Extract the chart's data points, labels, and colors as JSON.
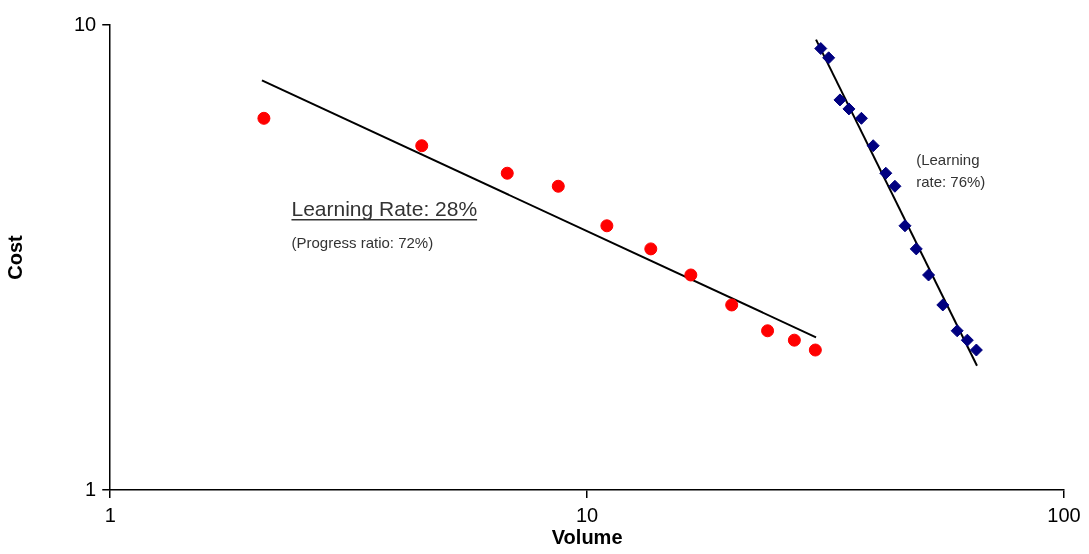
{
  "chart_data": {
    "type": "scatter",
    "xlabel": "Volume",
    "ylabel": "Cost",
    "log": "xy",
    "xlim": [
      1,
      100
    ],
    "ylim": [
      1,
      10
    ],
    "xticks": [
      1,
      10,
      100
    ],
    "yticks": [
      1,
      10
    ],
    "grid": false,
    "legend": false,
    "series": [
      {
        "type": "scatter",
        "color": "#ff0000",
        "marker": "circle",
        "x": [
          2.1,
          4.5,
          6.8,
          8.7,
          11,
          13.6,
          16.5,
          20.1,
          23.9,
          27.2,
          30.1
        ],
        "values": [
          6.3,
          5.5,
          4.8,
          4.5,
          3.7,
          3.3,
          2.9,
          2.5,
          2.2,
          2.1,
          2.0
        ]
      },
      {
        "type": "scatter",
        "color": "#000080",
        "marker": "diamond",
        "x": [
          30.9,
          32.1,
          33.9,
          35.4,
          37.6,
          39.8,
          42.3,
          44.2,
          46.4,
          49,
          52,
          55.7,
          59.7,
          62.7,
          65.5
        ],
        "values": [
          8.9,
          8.5,
          6.9,
          6.6,
          6.3,
          5.5,
          4.8,
          4.5,
          3.7,
          3.3,
          2.9,
          2.5,
          2.2,
          2.1,
          2.0
        ]
      },
      {
        "type": "line",
        "color": "#000000",
        "marker": "none",
        "line_style": "solid",
        "x": [
          2.08,
          30.2
        ],
        "values": [
          7.6,
          2.13
        ]
      },
      {
        "type": "line",
        "color": "#000000",
        "marker": "none",
        "line_style": "solid",
        "x": [
          30.2,
          65.7
        ],
        "values": [
          9.3,
          1.85
        ]
      }
    ],
    "annotations": [
      "Learning Rate: 28%",
      "(Progress ratio: 72%)",
      "(Learning\nrate: 76%)"
    ]
  }
}
